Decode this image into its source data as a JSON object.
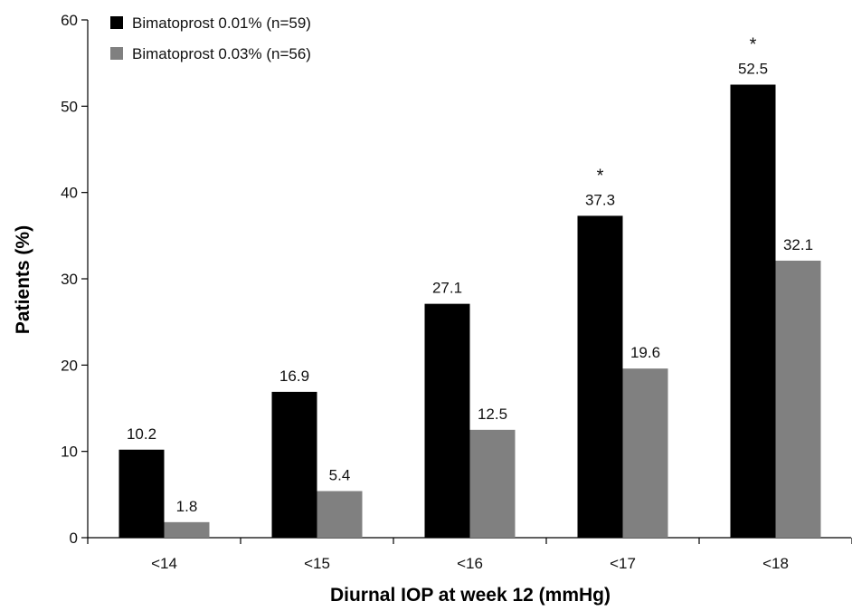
{
  "chart_data": {
    "type": "bar",
    "categories": [
      "<14",
      "<15",
      "<16",
      "<17",
      "<18"
    ],
    "series": [
      {
        "name": "Bimatoprost 0.01% (n=59)",
        "values": [
          10.2,
          16.9,
          27.1,
          37.3,
          52.5
        ],
        "color": "#000000"
      },
      {
        "name": "Bimatoprost 0.03% (n=56)",
        "values": [
          1.8,
          5.4,
          12.5,
          19.6,
          32.1
        ],
        "color": "#808080"
      }
    ],
    "value_labels": [
      [
        "10.2",
        "16.9",
        "27.1",
        "37.3",
        "52.5"
      ],
      [
        "1.8",
        "5.4",
        "12.5",
        "19.6",
        "32.1"
      ]
    ],
    "significance_markers": [
      "",
      "",
      "",
      "*",
      "*"
    ],
    "xlabel": "Diurnal IOP at week 12 (mmHg)",
    "ylabel": "Patients (%)",
    "ylim": [
      0,
      60
    ],
    "yticks": [
      0,
      10,
      20,
      30,
      40,
      50,
      60
    ],
    "grid": false,
    "legend_position": "top-left"
  }
}
